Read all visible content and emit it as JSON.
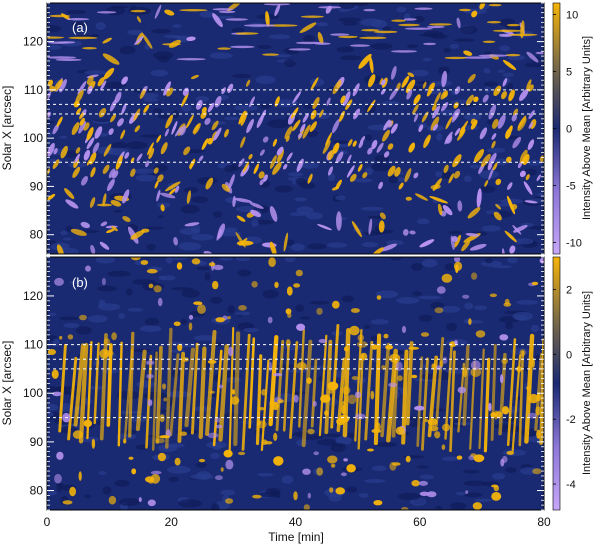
{
  "chart_data": [
    {
      "type": "heatmap",
      "panel_label": "(a)",
      "ylabel": "Solar X [arcsec]",
      "yticks": [
        80,
        90,
        100,
        110,
        120
      ],
      "ylim": [
        76,
        128
      ],
      "xlim": [
        0,
        80
      ],
      "guide_lines_y": [
        95,
        105,
        107,
        110
      ],
      "colorbar": {
        "label": "Intensity Above Mean [Arbitrary Units]",
        "range": [
          -11,
          11
        ],
        "ticks": [
          -10,
          -5,
          0,
          5,
          10
        ],
        "tick_labels": [
          "-10",
          "-5",
          "0",
          "5",
          "10"
        ]
      },
      "pattern": {
        "description": "Slanted yellow/purple wave tracks concentrated between ~90 and ~112 arcsec; noisier blotches below 90 arcsec",
        "quiet_bands": [
          [
            112,
            116
          ],
          [
            98,
            101
          ],
          [
            88,
            92
          ]
        ]
      }
    },
    {
      "type": "heatmap",
      "panel_label": "(b)",
      "ylabel": "Solar X [arcsec]",
      "yticks": [
        80,
        90,
        100,
        110,
        120
      ],
      "ylim": [
        76,
        128
      ],
      "xlim": [
        0,
        80
      ],
      "xticks": [
        0,
        20,
        40,
        60,
        80
      ],
      "xlabel": "Time [min]",
      "guide_lines_y": [
        95,
        105,
        107,
        110
      ],
      "colorbar": {
        "label": "Intensity Above Mean [Arbitrary Units]",
        "range": [
          -4.8,
          3
        ],
        "ticks": [
          -4,
          -2,
          0,
          2
        ],
        "tick_labels": [
          "-4",
          "-2",
          "0",
          "2"
        ]
      },
      "pattern": {
        "description": "Near-vertical yellow streaks across 90-110 arcsec with scattered patches elsewhere"
      }
    }
  ],
  "colors": {
    "negative": "#b792f0",
    "neutral": "#1a2a72",
    "positive": "#f5b409",
    "guide": "#ffffff"
  }
}
